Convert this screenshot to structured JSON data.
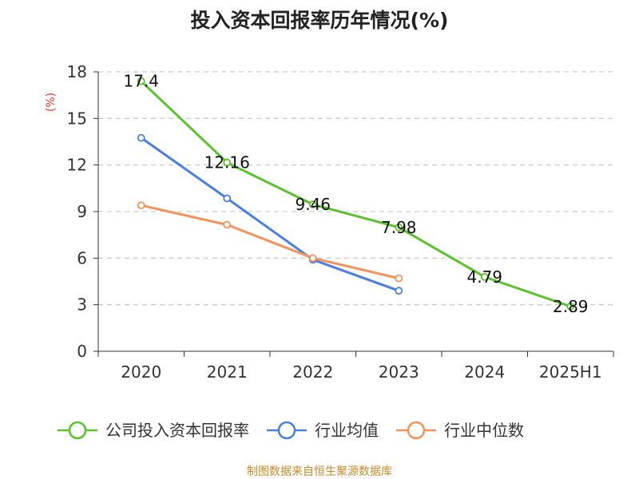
{
  "chart_data": {
    "type": "line",
    "title": "投入资本回报率历年情况(%)",
    "ylabel": "(%)",
    "xlabel": "",
    "categories": [
      "2020",
      "2021",
      "2022",
      "2023",
      "2024",
      "2025H1"
    ],
    "ylim": [
      0,
      18
    ],
    "yticks": [
      0,
      3,
      6,
      9,
      12,
      15,
      18
    ],
    "grid": true,
    "legend_position": "bottom",
    "series": [
      {
        "name": "公司投入资本回报率",
        "color": "#5cc12f",
        "values": [
          17.4,
          12.16,
          9.46,
          7.98,
          4.79,
          2.89
        ],
        "labels": [
          "17.4",
          "12.16",
          "9.46",
          "7.98",
          "4.79",
          "2.89"
        ]
      },
      {
        "name": "行业均值",
        "color": "#4a7fdd",
        "values": [
          13.75,
          9.85,
          5.9,
          3.9,
          null,
          null
        ]
      },
      {
        "name": "行业中位数",
        "color": "#f4925a",
        "values": [
          9.4,
          8.15,
          6.0,
          4.7,
          null,
          null
        ]
      }
    ]
  },
  "source": "制图数据来自恒生聚源数据库"
}
